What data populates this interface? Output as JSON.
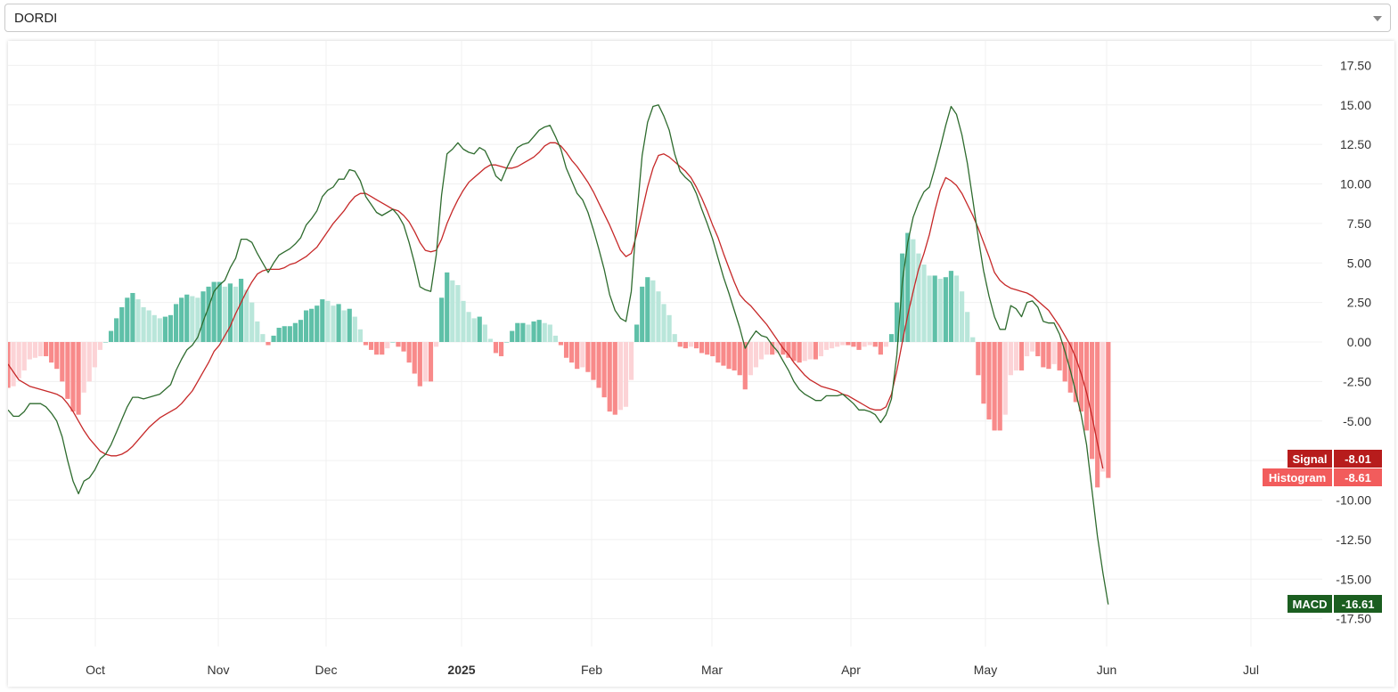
{
  "selector": {
    "value": "DORDI"
  },
  "colors": {
    "macd": "#2e6b2e",
    "signal": "#c62828",
    "hist_pos_strong": "#5fc0a8",
    "hist_pos_weak": "#b9e6da",
    "hist_neg_strong": "#f88a8a",
    "hist_neg_weak": "#fcd3d6",
    "grid": "#f0f0f0"
  },
  "chart_data": {
    "type": "line",
    "x_tick_labels": [
      "Oct",
      "Nov",
      "Dec",
      "2025",
      "Feb",
      "Mar",
      "Apr",
      "May",
      "Jun",
      "Jul"
    ],
    "y_ticks": [
      "17.50",
      "15.00",
      "12.50",
      "10.00",
      "7.50",
      "5.00",
      "2.50",
      "0.00",
      "-2.50",
      "-5.00",
      "-7.50",
      "-10.00",
      "-12.50",
      "-15.00",
      "-17.50"
    ],
    "ylim": [
      -18.5,
      18.5
    ],
    "grid": true,
    "series": [
      {
        "name": "MACD",
        "last_value": "-16.61",
        "values": [
          -4.3,
          -4.7,
          -4.7,
          -4.4,
          -3.9,
          -3.9,
          -3.9,
          -4.1,
          -4.5,
          -5.0,
          -6.0,
          -7.5,
          -8.8,
          -9.6,
          -8.8,
          -8.6,
          -8.1,
          -7.4,
          -7.1,
          -6.5,
          -5.7,
          -4.9,
          -4.1,
          -3.5,
          -3.5,
          -3.6,
          -3.5,
          -3.4,
          -3.3,
          -3.0,
          -2.7,
          -1.8,
          -1.1,
          -0.5,
          -0.2,
          0.3,
          1.3,
          2.2,
          3.2,
          3.6,
          3.9,
          4.7,
          5.3,
          6.5,
          6.5,
          6.3,
          5.6,
          5.0,
          4.4,
          5.0,
          5.5,
          5.7,
          5.9,
          6.2,
          6.6,
          7.4,
          7.8,
          8.3,
          9.2,
          9.6,
          9.8,
          10.3,
          10.3,
          10.9,
          10.8,
          10.2,
          9.2,
          8.7,
          8.2,
          8.0,
          8.2,
          8.4,
          8.0,
          7.4,
          6.3,
          5.0,
          3.5,
          3.3,
          3.2,
          5.5,
          9.3,
          11.9,
          12.2,
          12.6,
          12.2,
          12.0,
          11.9,
          12.3,
          12.1,
          11.4,
          10.5,
          10.2,
          11.0,
          11.7,
          12.3,
          12.5,
          12.6,
          13.0,
          13.4,
          13.6,
          13.7,
          13.0,
          12.2,
          11.0,
          10.2,
          9.4,
          9.0,
          8.2,
          7.1,
          5.9,
          4.6,
          3.0,
          2.0,
          1.5,
          1.3,
          3.2,
          7.9,
          11.8,
          13.9,
          14.9,
          15.0,
          14.3,
          13.4,
          11.9,
          10.8,
          10.4,
          10.1,
          9.4,
          8.4,
          7.5,
          6.5,
          5.3,
          4.1,
          3.1,
          2.0,
          0.9,
          -0.4,
          0.2,
          0.7,
          0.4,
          0.3,
          -0.2,
          -0.6,
          -1.2,
          -1.8,
          -2.5,
          -3.0,
          -3.3,
          -3.5,
          -3.7,
          -3.7,
          -3.4,
          -3.4,
          -3.4,
          -3.3,
          -3.6,
          -3.9,
          -4.3,
          -4.3,
          -4.4,
          -4.6,
          -5.1,
          -4.6,
          -3.6,
          -0.8,
          3.8,
          6.3,
          7.9,
          8.8,
          9.5,
          9.8,
          11.0,
          12.3,
          13.7,
          14.9,
          14.4,
          13.1,
          11.3,
          9.0,
          6.6,
          4.5,
          2.9,
          1.6,
          0.8,
          0.8,
          2.3,
          2.1,
          1.6,
          2.5,
          2.6,
          2.2,
          1.3,
          1.2,
          1.2,
          0.5,
          -0.6,
          -1.8,
          -3.2,
          -4.6,
          -6.5,
          -9.4,
          -12.3,
          -14.6,
          -16.6
        ]
      },
      {
        "name": "Signal",
        "last_value": "-8.01",
        "values": [
          -1.4,
          -1.9,
          -2.4,
          -2.6,
          -2.8,
          -2.9,
          -3.0,
          -3.1,
          -3.2,
          -3.3,
          -3.5,
          -3.9,
          -4.4,
          -5.0,
          -5.6,
          -6.1,
          -6.5,
          -6.9,
          -7.1,
          -7.2,
          -7.2,
          -7.1,
          -6.9,
          -6.6,
          -6.2,
          -5.8,
          -5.4,
          -5.1,
          -4.8,
          -4.6,
          -4.4,
          -4.2,
          -3.9,
          -3.5,
          -3.1,
          -2.5,
          -1.9,
          -1.3,
          -0.6,
          -0.2,
          0.4,
          1.0,
          1.8,
          2.5,
          3.2,
          3.8,
          4.3,
          4.5,
          4.6,
          4.6,
          4.6,
          4.7,
          4.9,
          5.0,
          5.2,
          5.4,
          5.7,
          6.0,
          6.5,
          7.0,
          7.5,
          7.9,
          8.3,
          8.8,
          9.2,
          9.4,
          9.4,
          9.2,
          9.0,
          8.8,
          8.6,
          8.4,
          8.3,
          8.0,
          7.6,
          7.0,
          6.3,
          5.8,
          5.7,
          5.8,
          6.5,
          7.5,
          8.3,
          9.0,
          9.6,
          10.1,
          10.4,
          10.7,
          11.0,
          11.2,
          11.2,
          11.1,
          11.0,
          11.0,
          11.1,
          11.3,
          11.5,
          11.7,
          12.0,
          12.4,
          12.6,
          12.6,
          12.4,
          12.0,
          11.5,
          11.1,
          10.6,
          10.1,
          9.5,
          8.8,
          8.1,
          7.4,
          6.6,
          5.8,
          5.4,
          5.6,
          6.8,
          8.3,
          9.8,
          11.0,
          11.8,
          11.9,
          11.7,
          11.4,
          11.1,
          10.8,
          10.4,
          9.8,
          9.1,
          8.3,
          7.4,
          6.6,
          5.6,
          4.7,
          3.8,
          3.0,
          2.6,
          2.3,
          1.9,
          1.5,
          1.1,
          0.6,
          0.1,
          -0.4,
          -0.8,
          -1.3,
          -1.7,
          -2.1,
          -2.4,
          -2.6,
          -2.8,
          -2.9,
          -3.0,
          -3.1,
          -3.3,
          -3.4,
          -3.6,
          -3.8,
          -4.0,
          -4.2,
          -4.3,
          -4.3,
          -4.1,
          -3.3,
          -1.8,
          0.0,
          1.7,
          3.2,
          4.6,
          5.6,
          6.8,
          8.3,
          9.6,
          10.4,
          10.2,
          9.9,
          9.4,
          8.7,
          8.0,
          7.2,
          6.3,
          5.4,
          4.4,
          3.9,
          3.6,
          3.4,
          3.3,
          3.2,
          3.1,
          2.9,
          2.6,
          2.3,
          2.0,
          1.5,
          1.0,
          0.4,
          -0.2,
          -1.0,
          -2.0,
          -3.2,
          -4.7,
          -6.4,
          -8.0
        ]
      },
      {
        "name": "Histogram",
        "last_value": "-8.61",
        "values": [
          -2.9,
          -2.8,
          -2.3,
          -1.8,
          -1.1,
          -1.0,
          -0.9,
          -0.9,
          -1.3,
          -1.7,
          -2.5,
          -3.6,
          -4.4,
          -4.6,
          -3.2,
          -2.5,
          -1.6,
          -0.5,
          0.0,
          0.7,
          1.5,
          2.2,
          2.8,
          3.1,
          2.7,
          2.2,
          2.0,
          1.7,
          1.5,
          1.6,
          1.7,
          2.4,
          2.8,
          3.0,
          2.9,
          2.8,
          3.2,
          3.5,
          3.8,
          3.8,
          3.5,
          3.7,
          3.5,
          4.0,
          3.3,
          2.5,
          1.3,
          0.5,
          -0.2,
          0.4,
          0.9,
          1.0,
          1.0,
          1.2,
          1.4,
          2.0,
          2.1,
          2.3,
          2.7,
          2.6,
          2.3,
          2.4,
          2.0,
          2.1,
          1.6,
          0.8,
          -0.2,
          -0.5,
          -0.8,
          -0.8,
          -0.4,
          0.0,
          -0.3,
          -0.6,
          -1.3,
          -2.0,
          -2.8,
          -2.5,
          -2.5,
          -0.3,
          2.8,
          4.4,
          3.9,
          3.6,
          2.6,
          1.9,
          1.5,
          1.6,
          1.1,
          0.2,
          -0.7,
          -0.9,
          0.0,
          0.7,
          1.2,
          1.2,
          1.1,
          1.3,
          1.4,
          1.2,
          1.1,
          0.4,
          -0.2,
          -1.0,
          -1.3,
          -1.7,
          -1.6,
          -1.9,
          -2.4,
          -2.9,
          -3.5,
          -4.4,
          -4.6,
          -4.3,
          -4.1,
          -2.4,
          1.1,
          3.5,
          4.1,
          3.9,
          3.2,
          2.4,
          1.7,
          0.5,
          -0.3,
          -0.4,
          -0.3,
          -0.4,
          -0.7,
          -0.8,
          -0.9,
          -1.3,
          -1.5,
          -1.7,
          -1.8,
          -2.1,
          -3.0,
          -2.1,
          -1.6,
          -1.1,
          -0.8,
          -0.8,
          -0.7,
          -0.8,
          -1.0,
          -1.2,
          -1.3,
          -1.2,
          -1.1,
          -1.1,
          -0.9,
          -0.5,
          -0.4,
          -0.3,
          -0.2,
          -0.2,
          -0.3,
          -0.5,
          -0.3,
          -0.2,
          -0.3,
          -0.8,
          -0.3,
          0.5,
          2.5,
          5.6,
          6.9,
          6.5,
          5.6,
          4.9,
          4.2,
          4.2,
          4.0,
          4.1,
          4.5,
          4.2,
          3.2,
          1.9,
          0.3,
          -2.1,
          -3.9,
          -4.9,
          -5.6,
          -5.6,
          -4.6,
          -2.1,
          -1.8,
          -1.8,
          -0.9,
          -0.6,
          -0.9,
          -1.6,
          -1.7,
          -1.4,
          -1.8,
          -2.5,
          -3.2,
          -3.8,
          -4.4,
          -5.6,
          -7.4,
          -9.2,
          -8.2,
          -8.6
        ]
      }
    ]
  }
}
